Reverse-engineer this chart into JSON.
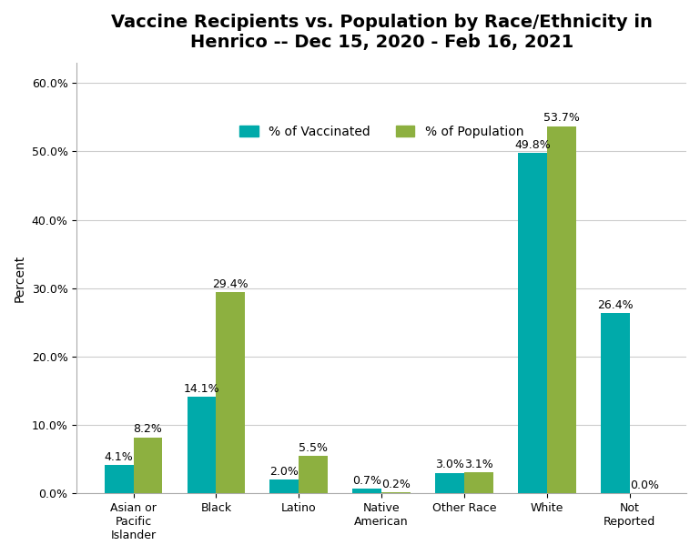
{
  "title": "Vaccine Recipients vs. Population by Race/Ethnicity in\nHenrico -- Dec 15, 2020 - Feb 16, 2021",
  "categories": [
    "Asian or\nPacific\nIslander",
    "Black",
    "Latino",
    "Native\nAmerican",
    "Other Race",
    "White",
    "Not\nReported"
  ],
  "vaccinated": [
    4.1,
    14.1,
    2.0,
    0.7,
    3.0,
    49.8,
    26.4
  ],
  "population": [
    8.2,
    29.4,
    5.5,
    0.2,
    3.1,
    53.7,
    0.0
  ],
  "color_vaccinated": "#00AAAA",
  "color_population": "#8DB040",
  "ylabel": "Percent",
  "ylim": [
    0,
    63
  ],
  "yticks": [
    0,
    10,
    20,
    30,
    40,
    50,
    60
  ],
  "ytick_labels": [
    "0.0%",
    "10.0%",
    "20.0%",
    "30.0%",
    "40.0%",
    "50.0%",
    "60.0%"
  ],
  "legend_vaccinated": "% of Vaccinated",
  "legend_population": "% of Population",
  "bar_width": 0.35,
  "title_fontsize": 14,
  "label_fontsize": 9,
  "tick_fontsize": 9,
  "ylabel_fontsize": 10,
  "background_color": "#ffffff",
  "border_color": "#aaaaaa"
}
